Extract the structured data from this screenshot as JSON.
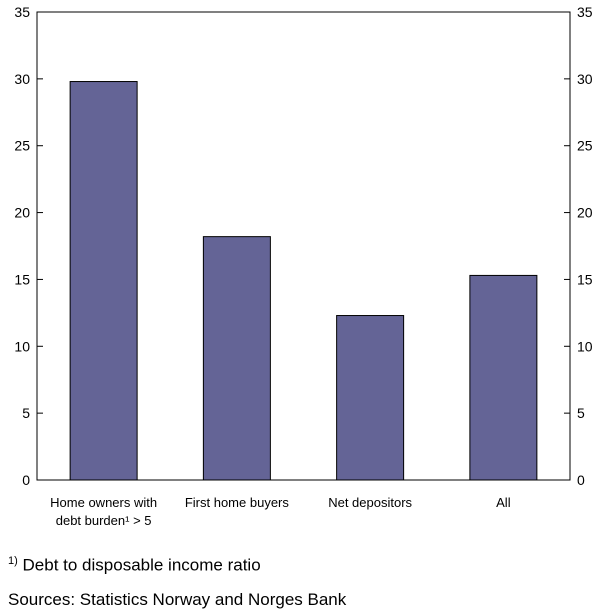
{
  "chart_data": {
    "type": "bar",
    "categories": [
      [
        "Home owners with",
        "debt burden¹ > 5"
      ],
      [
        "First home buyers"
      ],
      [
        "Net depositors"
      ],
      [
        "All"
      ]
    ],
    "values": [
      29.8,
      18.2,
      12.3,
      15.3
    ],
    "ylim": [
      0,
      35
    ],
    "yticks": [
      0,
      5,
      10,
      15,
      20,
      25,
      30,
      35
    ],
    "ytick_labels": [
      "0",
      "5",
      "10",
      "15",
      "20",
      "25",
      "30",
      "35"
    ],
    "y_axis_sides": "left-and-right",
    "grid": false,
    "bar_color": "#646496"
  },
  "footnotes": {
    "marker": "1)",
    "definition": "Debt to disposable income ratio",
    "sources": "Sources: Statistics Norway and Norges Bank"
  }
}
